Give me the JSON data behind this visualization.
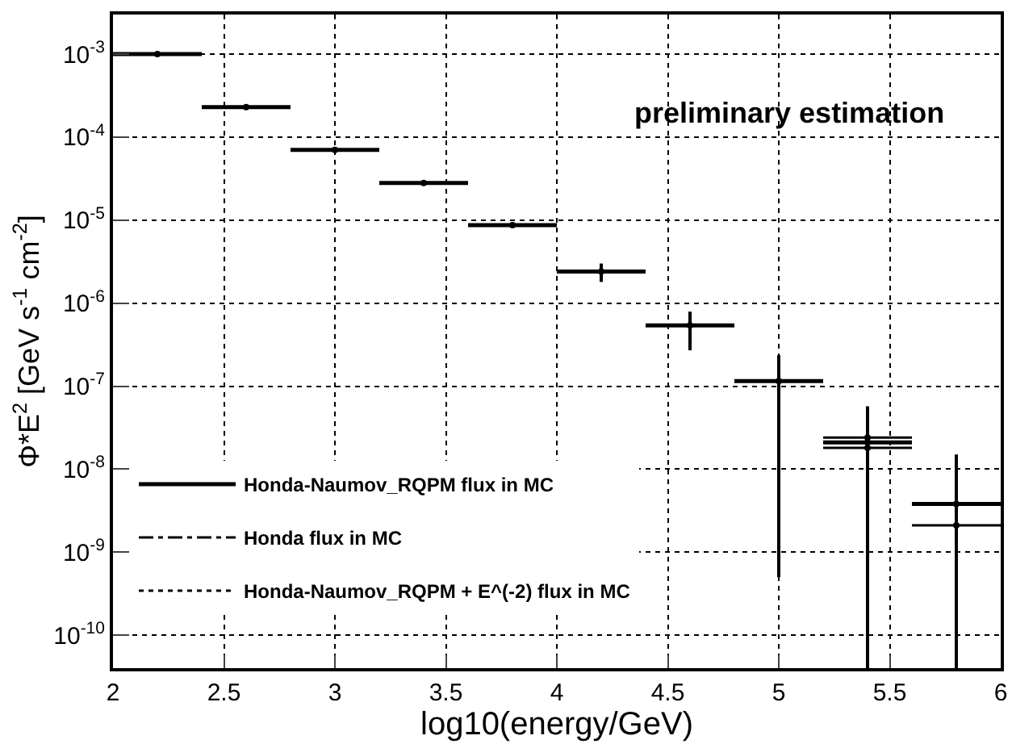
{
  "chart_data": {
    "type": "scatter",
    "xlabel": "log10(energy/GeV)",
    "ylabel": "Φ*E$^{2}$ [GeV s$^{-1}$ cm$^{-2}$]",
    "annotations": [
      "preliminary estimation"
    ],
    "x": [
      2.2,
      2.6,
      3.0,
      3.4,
      3.8,
      4.2,
      4.6,
      5.0,
      5.4,
      5.8
    ],
    "series": [
      {
        "name": "Honda-Naumov_RQPM flux in MC",
        "color": "#000000",
        "line_style": "solid",
        "xerrors": [
          0.2,
          0.2,
          0.2,
          0.2,
          0.2,
          0.2,
          0.2,
          0.2,
          0.2,
          0.2
        ],
        "values": [
          0.001,
          0.00023,
          7e-05,
          2.8e-05,
          8.7e-06,
          2.4e-06,
          5.4e-07,
          1.15e-07,
          2.1e-08,
          3.8e-09
        ],
        "errors": [
          null,
          null,
          null,
          null,
          null,
          [
            1.8e-06,
            3e-06
          ],
          [
            2.7e-07,
            7.9e-07
          ],
          [
            5e-10,
            2.35e-07
          ],
          [
            4e-11,
            5.7e-08
          ],
          [
            4e-11,
            1.5e-08
          ]
        ]
      },
      {
        "name": "Honda flux in MC",
        "color": "#000000",
        "line_style": "dashed",
        "xerrors": [
          null,
          null,
          null,
          null,
          null,
          null,
          null,
          null,
          0.2,
          0.2
        ],
        "values": [
          null,
          null,
          null,
          null,
          null,
          null,
          null,
          null,
          1.8e-08,
          2.1e-09
        ]
      },
      {
        "name": "Honda-Naumov_RQPM + E^(-2) flux in MC",
        "color": "#000000",
        "line_style": "dotted",
        "xerrors": [
          null,
          null,
          null,
          null,
          null,
          null,
          null,
          null,
          0.2,
          null
        ],
        "values": [
          null,
          null,
          null,
          null,
          null,
          null,
          null,
          null,
          2.4e-08,
          null
        ]
      }
    ],
    "xlim": [
      2,
      6
    ],
    "xticks": [
      2,
      2.5,
      3,
      3.5,
      4,
      4.5,
      5,
      5.5,
      6
    ],
    "ylim": [
      4e-11,
      0.003
    ],
    "yticks": [
      {
        "value": 1e-10,
        "label": "10$^{-10}$"
      },
      {
        "value": 1e-09,
        "label": "10$^{-9}$"
      },
      {
        "value": 1e-08,
        "label": "10$^{-8}$"
      },
      {
        "value": 1e-07,
        "label": "10$^{-7}$"
      },
      {
        "value": 1e-06,
        "label": "10$^{-6}$"
      },
      {
        "value": 1e-05,
        "label": "10$^{-5}$"
      },
      {
        "value": 0.0001,
        "label": "10$^{-4}$"
      },
      {
        "value": 0.001,
        "label": "10$^{-3}$"
      }
    ],
    "log": "y",
    "grid": true,
    "legend": "left",
    "marker": "circle"
  }
}
